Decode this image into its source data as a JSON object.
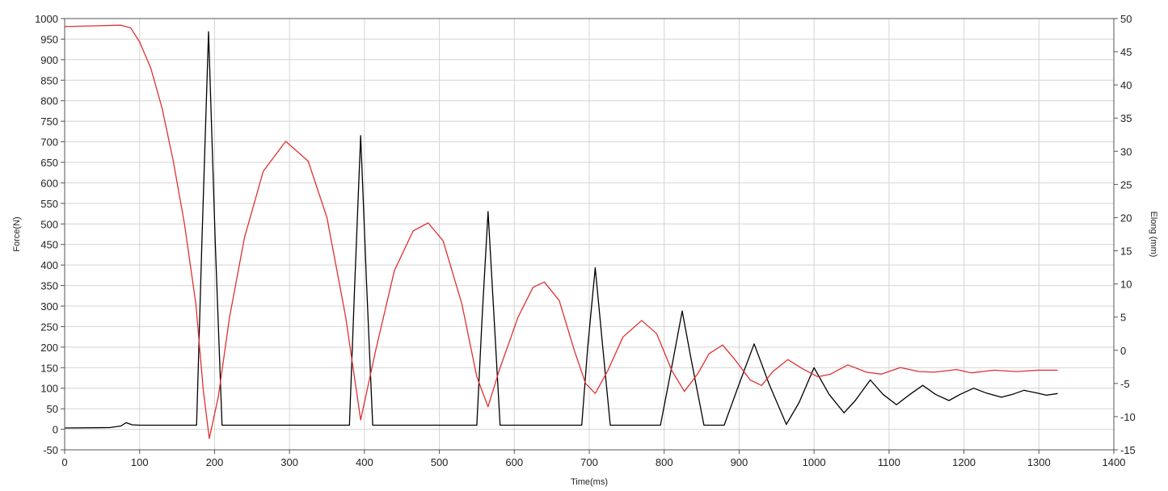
{
  "chart_data": {
    "type": "line",
    "xlabel": "Time(ms)",
    "ylabel_left": "Force(N)",
    "ylabel_right": "Elong (mm)",
    "xlim": [
      0,
      1400
    ],
    "ylim_left": [
      -50,
      1000
    ],
    "ylim_right": [
      -15,
      50
    ],
    "x_ticks": [
      0,
      100,
      200,
      300,
      400,
      500,
      600,
      700,
      800,
      900,
      1000,
      1100,
      1200,
      1300,
      1400
    ],
    "y_left_ticks": [
      -50,
      0,
      50,
      100,
      150,
      200,
      250,
      300,
      350,
      400,
      450,
      500,
      550,
      600,
      650,
      700,
      750,
      800,
      850,
      900,
      950,
      1000
    ],
    "y_right_ticks": [
      -15,
      -10,
      -5,
      0,
      5,
      10,
      15,
      20,
      25,
      30,
      35,
      40,
      45,
      50
    ],
    "grid": true,
    "series": [
      {
        "axis": "left",
        "color": "#000000",
        "points": [
          [
            0,
            3
          ],
          [
            60,
            4
          ],
          [
            75,
            8
          ],
          [
            82,
            16
          ],
          [
            90,
            11
          ],
          [
            100,
            10
          ],
          [
            176,
            10
          ],
          [
            183,
            450
          ],
          [
            192,
            968
          ],
          [
            201,
            450
          ],
          [
            210,
            10
          ],
          [
            380,
            10
          ],
          [
            387,
            350
          ],
          [
            395,
            715
          ],
          [
            403,
            350
          ],
          [
            411,
            10
          ],
          [
            550,
            10
          ],
          [
            557,
            270
          ],
          [
            565,
            530
          ],
          [
            573,
            270
          ],
          [
            581,
            10
          ],
          [
            690,
            10
          ],
          [
            698,
            200
          ],
          [
            708,
            393
          ],
          [
            718,
            200
          ],
          [
            728,
            10
          ],
          [
            795,
            10
          ],
          [
            812,
            170
          ],
          [
            824,
            288
          ],
          [
            836,
            170
          ],
          [
            853,
            10
          ],
          [
            880,
            10
          ],
          [
            900,
            110
          ],
          [
            920,
            208
          ],
          [
            940,
            110
          ],
          [
            963,
            12
          ],
          [
            980,
            65
          ],
          [
            1000,
            150
          ],
          [
            1020,
            85
          ],
          [
            1040,
            40
          ],
          [
            1055,
            70
          ],
          [
            1075,
            120
          ],
          [
            1092,
            85
          ],
          [
            1110,
            60
          ],
          [
            1128,
            85
          ],
          [
            1145,
            107
          ],
          [
            1162,
            85
          ],
          [
            1180,
            70
          ],
          [
            1195,
            85
          ],
          [
            1213,
            100
          ],
          [
            1230,
            88
          ],
          [
            1250,
            78
          ],
          [
            1265,
            85
          ],
          [
            1280,
            95
          ],
          [
            1298,
            88
          ],
          [
            1310,
            83
          ],
          [
            1325,
            87
          ]
        ]
      },
      {
        "axis": "right",
        "color": "#e03030",
        "points": [
          [
            0,
            48.8
          ],
          [
            75,
            49.0
          ],
          [
            88,
            48.6
          ],
          [
            100,
            46.5
          ],
          [
            115,
            42.5
          ],
          [
            130,
            36.5
          ],
          [
            145,
            28.5
          ],
          [
            160,
            19.0
          ],
          [
            175,
            7.0
          ],
          [
            185,
            -6.0
          ],
          [
            193,
            -13.3
          ],
          [
            205,
            -7.0
          ],
          [
            220,
            5.0
          ],
          [
            240,
            17.0
          ],
          [
            265,
            27.0
          ],
          [
            295,
            31.5
          ],
          [
            325,
            28.5
          ],
          [
            350,
            20.0
          ],
          [
            375,
            5.0
          ],
          [
            395,
            -10.5
          ],
          [
            415,
            0.0
          ],
          [
            440,
            12.0
          ],
          [
            465,
            18.0
          ],
          [
            485,
            19.2
          ],
          [
            505,
            16.5
          ],
          [
            530,
            7.0
          ],
          [
            550,
            -4.0
          ],
          [
            565,
            -8.5
          ],
          [
            580,
            -3.0
          ],
          [
            605,
            5.0
          ],
          [
            625,
            9.5
          ],
          [
            640,
            10.3
          ],
          [
            660,
            7.5
          ],
          [
            680,
            0.0
          ],
          [
            695,
            -5.0
          ],
          [
            708,
            -6.5
          ],
          [
            725,
            -3.0
          ],
          [
            745,
            2.0
          ],
          [
            770,
            4.5
          ],
          [
            790,
            2.5
          ],
          [
            810,
            -3.0
          ],
          [
            827,
            -6.2
          ],
          [
            845,
            -3.5
          ],
          [
            860,
            -0.5
          ],
          [
            878,
            0.8
          ],
          [
            895,
            -1.5
          ],
          [
            915,
            -4.5
          ],
          [
            930,
            -5.3
          ],
          [
            945,
            -3.2
          ],
          [
            965,
            -1.4
          ],
          [
            985,
            -2.8
          ],
          [
            1005,
            -4.0
          ],
          [
            1022,
            -3.6
          ],
          [
            1045,
            -2.2
          ],
          [
            1070,
            -3.3
          ],
          [
            1090,
            -3.6
          ],
          [
            1115,
            -2.6
          ],
          [
            1140,
            -3.2
          ],
          [
            1160,
            -3.3
          ],
          [
            1190,
            -2.9
          ],
          [
            1210,
            -3.4
          ],
          [
            1240,
            -3.0
          ],
          [
            1270,
            -3.2
          ],
          [
            1300,
            -3.0
          ],
          [
            1325,
            -3.0
          ]
        ]
      }
    ]
  }
}
